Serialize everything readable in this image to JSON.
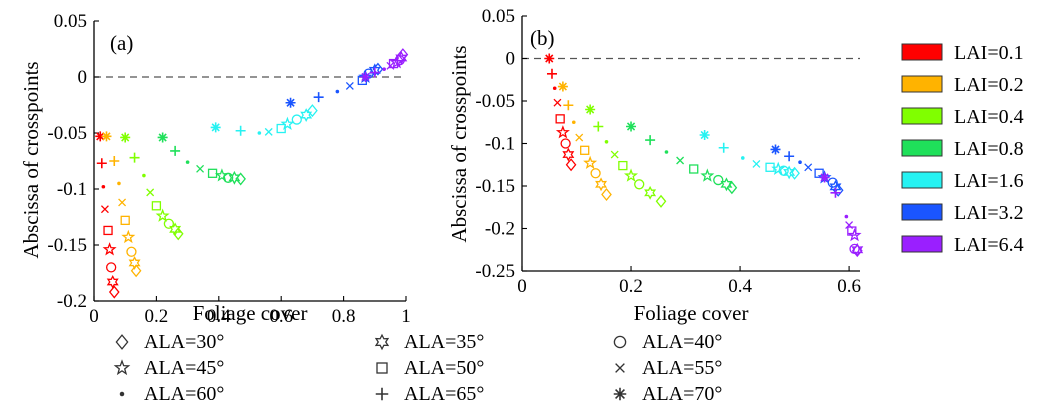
{
  "legend_lai": {
    "entries": [
      {
        "label": "LAI=0.1",
        "color": "#ff0000"
      },
      {
        "label": "LAI=0.2",
        "color": "#ffb300"
      },
      {
        "label": "LAI=0.4",
        "color": "#80ff00"
      },
      {
        "label": "LAI=0.8",
        "color": "#1fe05a"
      },
      {
        "label": "LAI=1.6",
        "color": "#26f2f2"
      },
      {
        "label": "LAI=3.2",
        "color": "#1a55ff"
      },
      {
        "label": "LAI=6.4",
        "color": "#9a1fff"
      }
    ]
  },
  "legend_ala": {
    "entries": [
      {
        "label": "ALA=30°",
        "marker": "diamond"
      },
      {
        "label": "ALA=35°",
        "marker": "hexagram"
      },
      {
        "label": "ALA=40°",
        "marker": "circle"
      },
      {
        "label": "ALA=45°",
        "marker": "pentagram"
      },
      {
        "label": "ALA=50°",
        "marker": "square"
      },
      {
        "label": "ALA=55°",
        "marker": "x"
      },
      {
        "label": "ALA=60°",
        "marker": "dot"
      },
      {
        "label": "ALA=65°",
        "marker": "plus"
      },
      {
        "label": "ALA=70°",
        "marker": "asterisk"
      }
    ]
  },
  "chart_data": [
    {
      "type": "scatter",
      "panel_label": "(a)",
      "xlabel": "Foliage cover",
      "ylabel": "Abscissa of crosspoints",
      "xlim": [
        0,
        1
      ],
      "ylim": [
        -0.2,
        0.05
      ],
      "xticks": [
        0,
        0.2,
        0.4,
        0.6,
        0.8,
        1
      ],
      "xtick_labels": [
        "0",
        "0.2",
        "0.4",
        "0.6",
        "0.8",
        "1"
      ],
      "yticks": [
        -0.2,
        -0.15,
        -0.1,
        -0.05,
        0,
        0.05
      ],
      "ytick_labels": [
        "-0.2",
        "-0.15",
        "-0.1",
        "-0.05",
        "0",
        "0.05"
      ],
      "reference_line": {
        "y": 0,
        "style": "dashed"
      },
      "ala_markers": [
        "asterisk",
        "plus",
        "dot",
        "x",
        "square",
        "pentagram",
        "circle",
        "hexagram",
        "diamond"
      ],
      "series": [
        {
          "lai": "LAI=0.1",
          "x": [
            0.02,
            0.025,
            0.03,
            0.035,
            0.045,
            0.05,
            0.055,
            0.06,
            0.065
          ],
          "y": [
            -0.053,
            -0.077,
            -0.098,
            -0.118,
            -0.137,
            -0.154,
            -0.17,
            -0.183,
            -0.192
          ]
        },
        {
          "lai": "LAI=0.2",
          "x": [
            0.04,
            0.065,
            0.08,
            0.09,
            0.1,
            0.11,
            0.12,
            0.13,
            0.135
          ],
          "y": [
            -0.053,
            -0.075,
            -0.095,
            -0.112,
            -0.128,
            -0.143,
            -0.156,
            -0.166,
            -0.173
          ]
        },
        {
          "lai": "LAI=0.4",
          "x": [
            0.1,
            0.13,
            0.16,
            0.18,
            0.2,
            0.22,
            0.24,
            0.26,
            0.27
          ],
          "y": [
            -0.054,
            -0.072,
            -0.088,
            -0.103,
            -0.115,
            -0.124,
            -0.131,
            -0.136,
            -0.14
          ]
        },
        {
          "lai": "LAI=0.8",
          "x": [
            0.22,
            0.26,
            0.3,
            0.34,
            0.38,
            0.41,
            0.43,
            0.45,
            0.47
          ],
          "y": [
            -0.054,
            -0.066,
            -0.076,
            -0.082,
            -0.086,
            -0.088,
            -0.09,
            -0.09,
            -0.091
          ]
        },
        {
          "lai": "LAI=1.6",
          "x": [
            0.39,
            0.47,
            0.53,
            0.56,
            0.6,
            0.62,
            0.65,
            0.68,
            0.7
          ],
          "y": [
            -0.045,
            -0.048,
            -0.05,
            -0.049,
            -0.046,
            -0.042,
            -0.038,
            -0.034,
            -0.03
          ]
        },
        {
          "lai": "LAI=3.2",
          "x": [
            0.63,
            0.72,
            0.78,
            0.82,
            0.86,
            0.87,
            0.88,
            0.9,
            0.91
          ],
          "y": [
            -0.023,
            -0.018,
            -0.013,
            -0.008,
            -0.003,
            0.0,
            0.003,
            0.006,
            0.007
          ]
        },
        {
          "lai": "LAI=6.4",
          "x": [
            0.87,
            0.9,
            0.93,
            0.95,
            0.96,
            0.97,
            0.98,
            0.985,
            0.99
          ],
          "y": [
            0.0,
            0.004,
            0.007,
            0.01,
            0.012,
            0.013,
            0.015,
            0.017,
            0.02
          ]
        }
      ]
    },
    {
      "type": "scatter",
      "panel_label": "(b)",
      "xlabel": "Foliage cover",
      "ylabel": "Abscissa of crosspoints",
      "xlim": [
        0,
        0.62
      ],
      "ylim": [
        -0.25,
        0.05
      ],
      "xticks": [
        0,
        0.2,
        0.4,
        0.6
      ],
      "xtick_labels": [
        "0",
        "0.2",
        "0.4",
        "0.6"
      ],
      "yticks": [
        -0.25,
        -0.2,
        -0.15,
        -0.1,
        -0.05,
        0,
        0.05
      ],
      "ytick_labels": [
        "-0.25",
        "-0.2",
        "-0.15",
        "-0.1",
        "-0.05",
        "0",
        "0.05"
      ],
      "reference_line": {
        "y": 0,
        "style": "dashed"
      },
      "ala_markers": [
        "asterisk",
        "plus",
        "dot",
        "x",
        "square",
        "pentagram",
        "circle",
        "hexagram",
        "diamond"
      ],
      "series": [
        {
          "lai": "LAI=0.1",
          "x": [
            0.05,
            0.055,
            0.06,
            0.065,
            0.07,
            0.075,
            0.08,
            0.085,
            0.09
          ],
          "y": [
            0.0,
            -0.018,
            -0.035,
            -0.052,
            -0.071,
            -0.087,
            -0.1,
            -0.113,
            -0.125
          ]
        },
        {
          "lai": "LAI=0.2",
          "x": [
            0.075,
            0.085,
            0.095,
            0.105,
            0.115,
            0.125,
            0.135,
            0.145,
            0.155
          ],
          "y": [
            -0.033,
            -0.055,
            -0.075,
            -0.093,
            -0.108,
            -0.123,
            -0.135,
            -0.148,
            -0.16
          ]
        },
        {
          "lai": "LAI=0.4",
          "x": [
            0.125,
            0.14,
            0.155,
            0.17,
            0.185,
            0.2,
            0.215,
            0.235,
            0.255
          ],
          "y": [
            -0.06,
            -0.08,
            -0.098,
            -0.113,
            -0.126,
            -0.138,
            -0.148,
            -0.158,
            -0.168
          ]
        },
        {
          "lai": "LAI=0.8",
          "x": [
            0.2,
            0.235,
            0.265,
            0.29,
            0.315,
            0.34,
            0.36,
            0.375,
            0.385
          ],
          "y": [
            -0.08,
            -0.096,
            -0.11,
            -0.12,
            -0.13,
            -0.138,
            -0.143,
            -0.148,
            -0.152
          ]
        },
        {
          "lai": "LAI=1.6",
          "x": [
            0.335,
            0.37,
            0.405,
            0.43,
            0.455,
            0.47,
            0.48,
            0.49,
            0.5
          ],
          "y": [
            -0.09,
            -0.105,
            -0.117,
            -0.124,
            -0.128,
            -0.13,
            -0.132,
            -0.134,
            -0.135
          ]
        },
        {
          "lai": "LAI=3.2",
          "x": [
            0.465,
            0.49,
            0.51,
            0.525,
            0.545,
            0.555,
            0.57,
            0.575,
            0.58
          ],
          "y": [
            -0.107,
            -0.115,
            -0.122,
            -0.128,
            -0.135,
            -0.14,
            -0.146,
            -0.151,
            -0.155
          ]
        },
        {
          "lai": "LAI=6.4",
          "x": [
            0.555,
            0.575,
            0.595,
            0.6,
            0.605,
            0.61,
            0.61,
            0.615,
            0.615
          ],
          "y": [
            -0.14,
            -0.158,
            -0.186,
            -0.196,
            -0.203,
            -0.208,
            -0.224,
            -0.225,
            -0.226
          ]
        }
      ]
    }
  ]
}
